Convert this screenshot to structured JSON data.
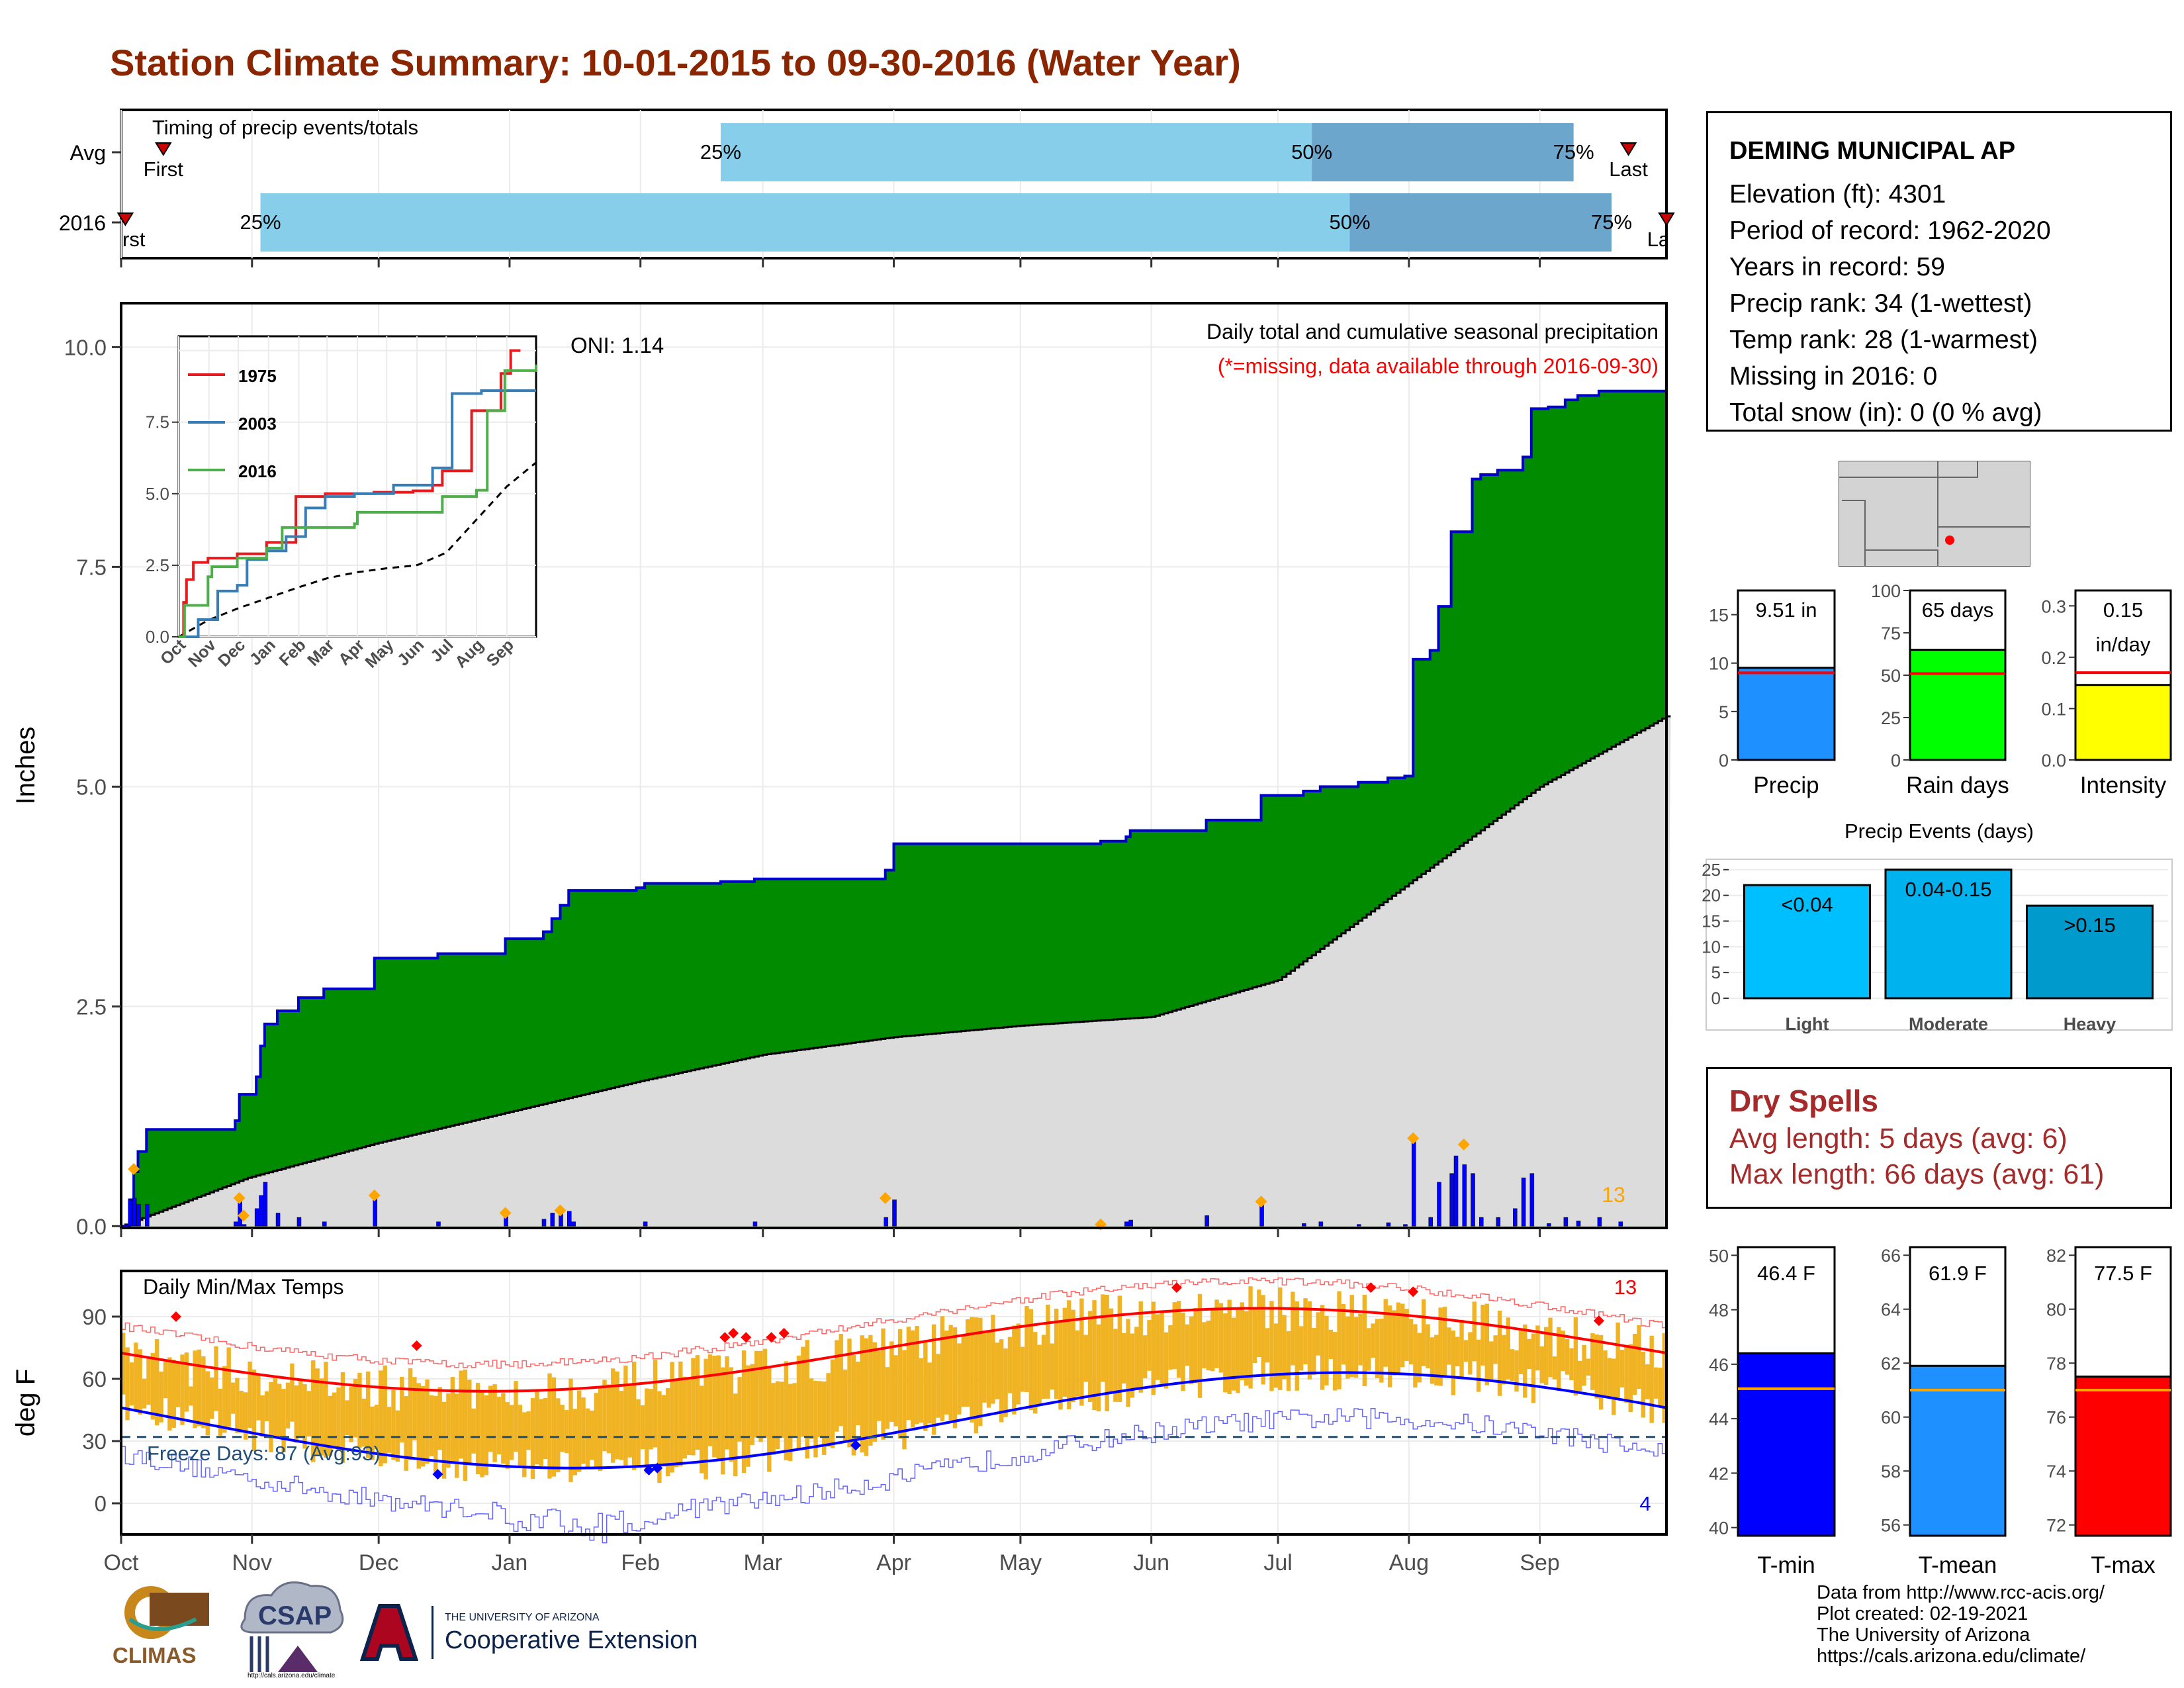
{
  "title": "Station Climate Summary: 10-01-2015 to 09-30-2016 (Water Year)",
  "timing": {
    "title": "Timing of precip events/totals",
    "rows": [
      {
        "label": "Avg",
        "first_label": "First",
        "last_label": "Last",
        "p25_label": "25%",
        "p50_label": "50%",
        "p75_label": "75%",
        "first_day": 10,
        "p25_day": 142,
        "p50_day": 282,
        "p75_day": 344,
        "last_day": 357
      },
      {
        "label": "2016",
        "first_label": "First",
        "last_label": "Last",
        "p25_label": "25%",
        "p50_label": "50%",
        "p75_label": "75%",
        "first_day": 1,
        "p25_day": 33,
        "p50_day": 291,
        "p75_day": 353,
        "last_day": 366
      }
    ],
    "colors": {
      "light": "#87ceeb",
      "dark": "#6ca6cd",
      "marker": "#cc0000"
    }
  },
  "precip_panel": {
    "ylabel": "Inches",
    "title": "Daily total and cumulative seasonal precipitation",
    "subtitle": "(*=missing, data available through 2016-09-30)",
    "oni_label": "ONI: 1.14",
    "count_label": "13",
    "y_ticks": [
      "0.0",
      "2.5",
      "5.0",
      "7.5",
      "10.0"
    ],
    "y_ticks_values": [
      0,
      2.5,
      5,
      7.5,
      10
    ],
    "colors": {
      "cumulative_fill": "#008b00",
      "cumulative_line": "#0000cd",
      "normal_fill": "#dcdcdc",
      "normal_line": "#000000",
      "daily_bar": "#0000ff",
      "extreme_marker": "#ffa500",
      "subtitle": "#ff0000",
      "count": "#ffa500"
    }
  },
  "inset": {
    "series_names": [
      "1975",
      "2003",
      "2016"
    ],
    "series_colors": [
      "#e41a1c",
      "#377eb8",
      "#4daf4a"
    ],
    "y_ticks": [
      "0.0",
      "2.5",
      "5.0",
      "7.5"
    ],
    "x_ticks": [
      "Oct",
      "Nov",
      "Dec",
      "Jan",
      "Feb",
      "Mar",
      "Apr",
      "May",
      "Jun",
      "Jul",
      "Aug",
      "Sep"
    ]
  },
  "temp_panel": {
    "ylabel": "deg F",
    "title": "Daily Min/Max Temps",
    "freeze_label": "Freeze Days: 87 (Avg:93)",
    "count_hot_label": "13",
    "count_cold_label": "4",
    "y_ticks": [
      "0",
      "30",
      "60",
      "90"
    ],
    "y_ticks_values": [
      0,
      30,
      60,
      90
    ],
    "colors": {
      "bar": "#f0b323",
      "avg_max": "#ff0000",
      "avg_min": "#0000ff",
      "freeze_line": "#1f4e79"
    }
  },
  "x_months": [
    "Oct",
    "Nov",
    "Dec",
    "Jan",
    "Feb",
    "Mar",
    "Apr",
    "May",
    "Jun",
    "Jul",
    "Aug",
    "Sep"
  ],
  "station": {
    "name": "DEMING MUNICIPAL AP",
    "lines": [
      "Elevation (ft): 4301",
      "Period of record: 1962-2020",
      "Years in record: 59",
      "Precip rank: 34 (1-wettest)",
      "Temp rank: 28 (1-warmest)",
      "Missing in 2016: 0",
      "Total snow (in): 0 (0 % avg)"
    ]
  },
  "mini_bars_precip": [
    {
      "name": "Precip",
      "value_label": "9.51 in",
      "value": 9.51,
      "avg": 9.0,
      "ymax": 17.5,
      "ticks": [
        "0",
        "5",
        "10",
        "15"
      ],
      "tick_vals": [
        0,
        5,
        10,
        15
      ],
      "color": "#1e90ff"
    },
    {
      "name": "Rain days",
      "value_label": "65 days",
      "value": 65,
      "avg": 51,
      "ymax": 100,
      "ticks": [
        "0",
        "25",
        "50",
        "75",
        "100"
      ],
      "tick_vals": [
        0,
        25,
        50,
        75,
        100
      ],
      "color": "#00ff00"
    },
    {
      "name": "Intensity",
      "value_label": "0.15 in/day",
      "value_label_1": "0.15",
      "value_label_2": "in/day",
      "value": 0.146,
      "avg": 0.17,
      "ymax": 0.33,
      "ticks": [
        "0.0",
        "0.1",
        "0.2",
        "0.3"
      ],
      "tick_vals": [
        0,
        0.1,
        0.2,
        0.3
      ],
      "color": "#ffff00"
    }
  ],
  "precip_events": {
    "title": "Precip Events (days)",
    "categories": [
      "Light",
      "Moderate",
      "Heavy"
    ],
    "bar_labels": [
      "<0.04",
      "0.04-0.15",
      ">0.15"
    ],
    "values": [
      22,
      25,
      18
    ],
    "colors": [
      "#00bfff",
      "#00b2ee",
      "#009acd"
    ],
    "y_ticks": [
      "0",
      "5",
      "10",
      "15",
      "20",
      "25"
    ],
    "y_tick_vals": [
      0,
      5,
      10,
      15,
      20,
      25
    ]
  },
  "dry_spells": {
    "title": "Dry Spells",
    "avg_length": "Avg length: 5 days (avg: 6)",
    "max_length": "Max length: 66 days (avg: 61)"
  },
  "temp_bars": [
    {
      "name": "T-min",
      "value_label": "46.4 F",
      "value": 46.4,
      "avg": 45.1,
      "ymin": 39.7,
      "ymax": 50.3,
      "ticks": [
        "40",
        "42",
        "44",
        "46",
        "48",
        "50"
      ],
      "tick_vals": [
        40,
        42,
        44,
        46,
        48,
        50
      ],
      "color": "#0000ff"
    },
    {
      "name": "T-mean",
      "value_label": "61.9 F",
      "value": 61.9,
      "avg": 61.0,
      "ymin": 55.6,
      "ymax": 66.3,
      "ticks": [
        "56",
        "58",
        "60",
        "62",
        "64",
        "66"
      ],
      "tick_vals": [
        56,
        58,
        60,
        62,
        64,
        66
      ],
      "color": "#1e90ff"
    },
    {
      "name": "T-max",
      "value_label": "77.5 F",
      "value": 77.5,
      "avg": 77.0,
      "ymin": 71.6,
      "ymax": 82.3,
      "ticks": [
        "72",
        "74",
        "76",
        "78",
        "80",
        "82"
      ],
      "tick_vals": [
        72,
        74,
        76,
        78,
        80,
        82
      ],
      "color": "#ff0000"
    }
  ],
  "credits": [
    "Data from http://www.rcc-acis.org/",
    "Plot created: 02-19-2021",
    "The University of Arizona",
    "https://cals.arizona.edu/climate/"
  ],
  "logos": {
    "climas": "CLIMAS",
    "csap": "CSAP",
    "csap_url": "http://cals.arizona.edu/climate",
    "ua_small": "THE UNIVERSITY OF ARIZONA",
    "ua_big": "Cooperative Extension",
    "ua_letter": "A"
  }
}
